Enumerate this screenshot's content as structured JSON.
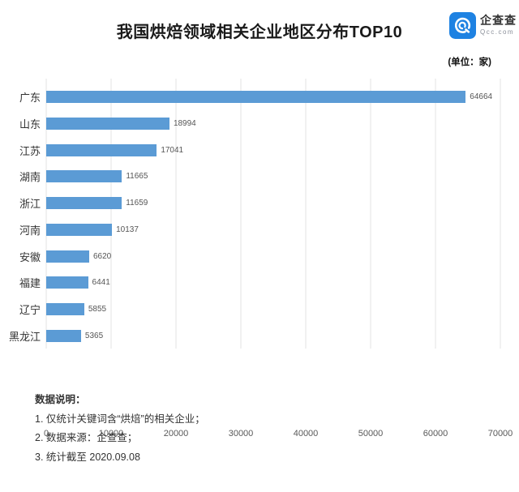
{
  "header": {
    "title": "我国烘焙领域相关企业地区分布TOP10",
    "unit_label": "(单位：家)",
    "logo": {
      "brand": "企查查",
      "domain": "Qcc.com",
      "icon": "qcc-logo-icon",
      "brand_color": "#1E82E2"
    }
  },
  "chart_data": {
    "type": "bar",
    "orientation": "horizontal",
    "title": "我国烘焙领域相关企业地区分布TOP10",
    "unit": "家",
    "categories": [
      "广东",
      "山东",
      "江苏",
      "湖南",
      "浙江",
      "河南",
      "安徽",
      "福建",
      "辽宁",
      "黑龙江"
    ],
    "values": [
      64664,
      18994,
      17041,
      11665,
      11659,
      10137,
      6620,
      6441,
      5855,
      5365
    ],
    "xlabel": "",
    "ylabel": "",
    "xlim": [
      0,
      70000
    ],
    "x_ticks": [
      0,
      10000,
      20000,
      30000,
      40000,
      50000,
      60000,
      70000
    ],
    "grid": true,
    "bar_color": "#5B9BD5",
    "value_labels": true,
    "legend_position": "none"
  },
  "notes": {
    "heading": "数据说明：",
    "items": [
      "1. 仅统计关键词含“烘焙”的相关企业；",
      "2. 数据来源：企查查；",
      "3. 统计截至 2020.09.08"
    ]
  }
}
